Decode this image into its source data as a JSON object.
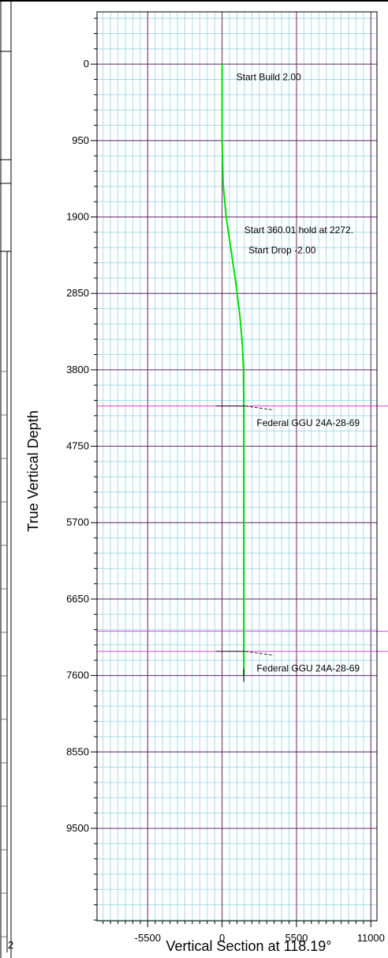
{
  "chart_data": {
    "type": "line",
    "title": "",
    "xlabel": "Vertical Section at 118.19°",
    "ylabel": "True Vertical Depth",
    "xlim": [
      -9250,
      11450
    ],
    "ylim": [
      10650,
      -650
    ],
    "y_inverted": true,
    "grid": true,
    "x_ticks": [
      -5500,
      0,
      5500,
      11000
    ],
    "x_tick_labels": [
      "-5500",
      "0",
      "5500",
      "11000"
    ],
    "y_ticks": [
      0,
      950,
      1900,
      2850,
      3800,
      4750,
      5700,
      6650,
      7600,
      8550,
      9500
    ],
    "y_tick_labels": [
      "0",
      "950",
      "1900",
      "2850",
      "3800",
      "4750",
      "5700",
      "6650",
      "7600",
      "8550",
      "9500"
    ],
    "colors": {
      "wellpath": "#00e000",
      "target_lines": "#e040e0",
      "major_grid": "#6a2a6a",
      "minor_grid": "#a8dce8"
    },
    "series": [
      {
        "name": "",
        "x": [
          0,
          0,
          80,
          300,
          650,
          1000,
          1300,
          1500,
          1580,
          1600,
          1600,
          1600,
          1600
        ],
        "y": [
          0,
          950,
          1500,
          1900,
          2300,
          2700,
          3100,
          3500,
          3800,
          4250,
          5500,
          6650,
          7600
        ]
      }
    ],
    "target_lines": [
      4250,
      7050,
      7300
    ],
    "annotations": [
      {
        "text": "Start Build 2.00",
        "x": 1050,
        "y": 200
      },
      {
        "text": "Start 360.01 hold at 2272.",
        "x": 1650,
        "y": 2100
      },
      {
        "text": "Start Drop -2.00",
        "x": 1950,
        "y": 2350
      },
      {
        "text": "Federal GGU 24A-28-69",
        "x": 2550,
        "y": 4500
      },
      {
        "text": "Federal GGU 24A-28-69",
        "x": 2550,
        "y": 7550
      }
    ]
  },
  "side_panel": {
    "footer_glyph": "2"
  }
}
